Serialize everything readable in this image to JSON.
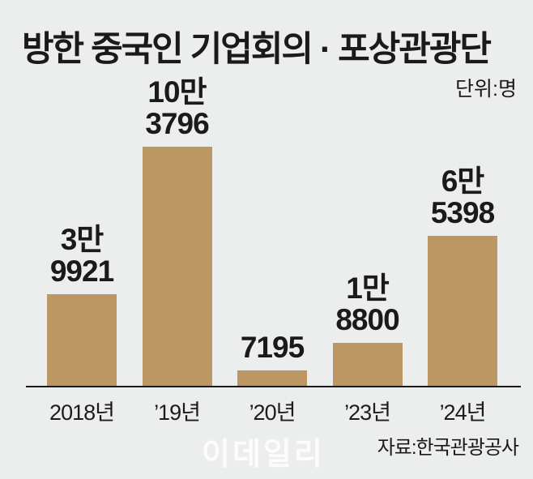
{
  "title": "방한 중국인 기업회의 · 포상관광단",
  "unit_label": "단위:명",
  "source_label": "자료:한국관광공사",
  "watermark": "이데일리",
  "colors": {
    "background": "#ECEDED",
    "bar": "#BC9764",
    "text": "#1A1A1A",
    "axis": "#1A1A1A",
    "watermark_text": "#F8F8F8"
  },
  "chart_data": {
    "type": "bar",
    "title": "방한 중국인 기업회의 · 포상관광단",
    "unit": "명",
    "categories": [
      "2018년",
      "’19년",
      "’20년",
      "’23년",
      "’24년"
    ],
    "values": [
      39921,
      103796,
      7195,
      18800,
      65398
    ],
    "value_labels": [
      [
        "3만",
        "9921"
      ],
      [
        "10만",
        "3796"
      ],
      [
        "7195"
      ],
      [
        "1만",
        "8800"
      ],
      [
        "6만",
        "5398"
      ]
    ],
    "xlabel": "",
    "ylabel": "명",
    "ylim": [
      0,
      110000
    ],
    "grid": false,
    "legend_position": "none",
    "source": "자료:한국관광공사"
  }
}
